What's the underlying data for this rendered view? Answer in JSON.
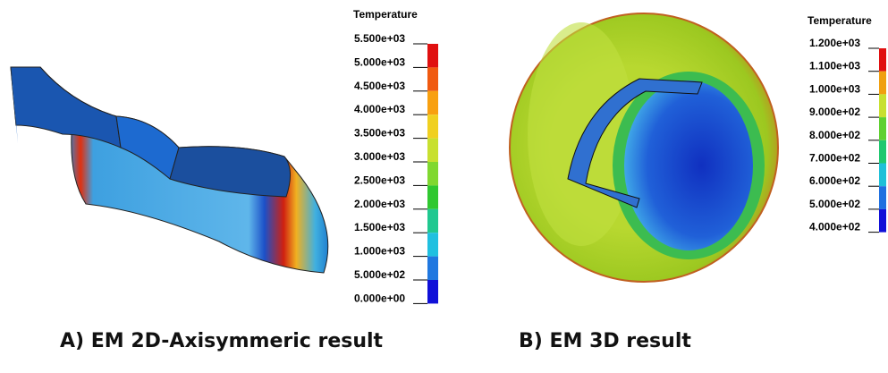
{
  "panels": [
    {
      "legend": {
        "title": "Temperature",
        "labels": [
          "5.500e+03",
          "5.000e+03",
          "4.500e+03",
          "4.000e+03",
          "3.500e+03",
          "3.000e+03",
          "2.500e+03",
          "2.000e+03",
          "1.500e+03",
          "1.000e+03",
          "5.000e+02",
          "0.000e+00"
        ]
      },
      "caption": "A) EM 2D-Axisymmeric result"
    },
    {
      "legend": {
        "title": "Temperature",
        "labels": [
          "1.200e+03",
          "1.100e+03",
          "1.000e+03",
          "9.000e+02",
          "8.000e+02",
          "7.000e+02",
          "6.000e+02",
          "5.000e+02",
          "4.000e+02"
        ]
      },
      "caption": "B) EM 3D result"
    }
  ]
}
